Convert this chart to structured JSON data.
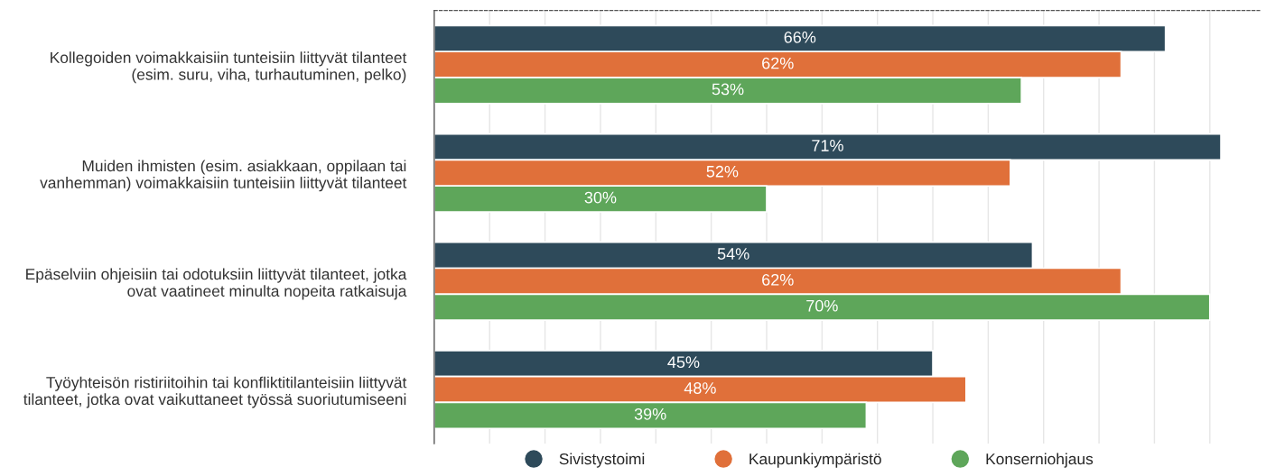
{
  "chart_data": {
    "type": "bar",
    "orientation": "horizontal",
    "categories": [
      "Kollegoiden voimakkaisiin tunteisiin liittyvät tilanteet\n(esim. suru, viha, turhautuminen, pelko)",
      "Muiden ihmisten (esim. asiakkaan, oppilaan tai\nvanhemman) voimakkaisiin tunteisiin liittyvät tilanteet",
      "Epäselviin ohjeisiin tai odotuksiin liittyvät tilanteet, jotka\novat vaatineet minulta nopeita ratkaisuja",
      "Työyhteisön ristiriitoihin tai konfliktitilanteisiin liittyvät\ntilanteet, jotka ovat vaikuttaneet työssä suoriutumiseeni"
    ],
    "series": [
      {
        "name": "Sivistystoimi",
        "color": "#2e4a5a",
        "values": [
          66,
          71,
          54,
          45
        ],
        "value_labels": [
          "66%",
          "71%",
          "54%",
          "45%"
        ]
      },
      {
        "name": "Kaupunkiympäristö",
        "color": "#e0703a",
        "values": [
          62,
          52,
          62,
          48
        ],
        "value_labels": [
          "62%",
          "52%",
          "62%",
          "48%"
        ]
      },
      {
        "name": "Konserniohjaus",
        "color": "#5ea65a",
        "values": [
          53,
          30,
          70,
          39
        ],
        "value_labels": [
          "53%",
          "30%",
          "70%",
          "39%"
        ]
      }
    ],
    "xlim": [
      0,
      74.5
    ],
    "xticks": [
      {
        "value": 0,
        "label": null
      },
      {
        "value": 5,
        "label": null
      },
      {
        "value": 10,
        "label": null
      },
      {
        "value": 15,
        "label": null
      },
      {
        "value": 20,
        "label": null
      },
      {
        "value": 25,
        "label": null
      },
      {
        "value": 30,
        "label": null
      },
      {
        "value": 35,
        "label": null
      },
      {
        "value": 40,
        "label": null
      },
      {
        "value": 45,
        "label": null
      },
      {
        "value": 50,
        "label": null
      },
      {
        "value": 55,
        "label": null
      },
      {
        "value": 60,
        "label": null
      },
      {
        "value": 65,
        "label": null
      },
      {
        "value": 70,
        "label": null
      }
    ],
    "tick_labels": "y",
    "grid": "x",
    "legend": "bottom"
  }
}
